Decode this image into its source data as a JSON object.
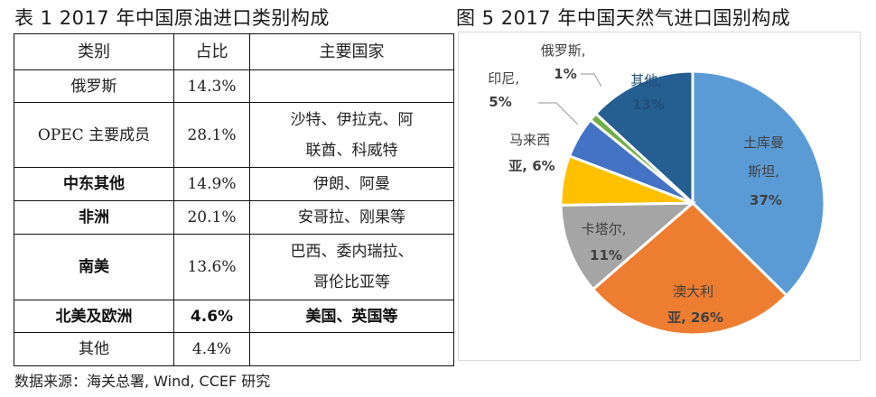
{
  "table": {
    "title": "表 1 2017 年中国原油进口类别构成",
    "headers": [
      "类别",
      "占比",
      "主要国家"
    ],
    "rows": [
      {
        "category": "俄罗斯",
        "share": "14.3%",
        "countries_line1": "",
        "countries_line2": ""
      },
      {
        "category": "OPEC 主要成员",
        "share": "28.1%",
        "countries_line1": "沙特、伊拉克、阿",
        "countries_line2": "联酋、科威特"
      },
      {
        "category": "中东其他",
        "share": "14.9%",
        "countries_line1": "伊朗、阿曼",
        "countries_line2": ""
      },
      {
        "category": "非洲",
        "share": "20.1%",
        "countries_line1": "安哥拉、刚果等",
        "countries_line2": ""
      },
      {
        "category": "南美",
        "share": "13.6%",
        "countries_line1": "巴西、委内瑞拉、",
        "countries_line2": "哥伦比亚等"
      },
      {
        "category": "北美及欧洲",
        "share": "4.6%",
        "countries_line1": "美国、英国等",
        "countries_line2": ""
      },
      {
        "category": "其他",
        "share": "4.4%",
        "countries_line1": "",
        "countries_line2": ""
      }
    ],
    "source": "数据来源：海关总署, Wind, CCEF 研究"
  },
  "chart_data": {
    "type": "pie",
    "title": "图 5 2017 年中国天然气进口国别构成",
    "categories": [
      "土库曼斯坦",
      "澳大利亚",
      "卡塔尔",
      "马来西亚",
      "印尼",
      "俄罗斯",
      "其他"
    ],
    "values": [
      37,
      26,
      11,
      6,
      5,
      1,
      13
    ],
    "unit": "%",
    "colors": [
      "#5b9bd5",
      "#ed7d31",
      "#a5a5a5",
      "#ffc000",
      "#4472c4",
      "#70ad47",
      "#255e91"
    ],
    "labels": [
      {
        "line1": "土库曼",
        "line2": "斯坦,",
        "line3": "37%"
      },
      {
        "line1": "澳大利",
        "line2": "亚, 26%"
      },
      {
        "line1": "卡塔尔,",
        "line2": "11%"
      },
      {
        "line1": "马来西",
        "line2": "亚, 6%"
      },
      {
        "line1": "印尼,",
        "line2": "5%"
      },
      {
        "line1": "俄罗斯,",
        "line2": "1%"
      },
      {
        "line1": "其他,",
        "line2": "13%"
      }
    ],
    "start_angle": "12 o'clock, clockwise",
    "legend": "none (data labels on slices)"
  }
}
